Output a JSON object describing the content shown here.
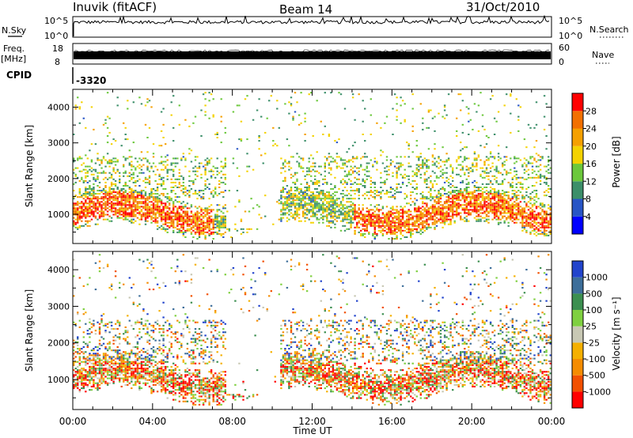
{
  "header": {
    "station": "Inuvik (fitACF)",
    "beam": "Beam 14",
    "date": "31/Oct/2010"
  },
  "panels": {
    "nsky": {
      "label": "N.Sky",
      "left_ticks": [
        "10^5",
        "10^0"
      ],
      "right_ticks": [
        "10^5",
        "10^0"
      ],
      "right_label": "N.Search"
    },
    "freq": {
      "label_line1": "Freq.",
      "label_line2": "[MHz]",
      "left_ticks": [
        "18",
        "8"
      ],
      "right_ticks": [
        "60",
        "0"
      ],
      "right_label": "Nave"
    },
    "cpid": {
      "label": "CPID",
      "value": "-3320"
    }
  },
  "chart_data": [
    {
      "type": "heatmap",
      "name": "power",
      "ylabel": "Slant Range [km]",
      "xlabel": "Time UT",
      "x_ticks": [
        "00:00",
        "04:00",
        "08:00",
        "12:00",
        "16:00",
        "20:00",
        "00:00"
      ],
      "xlim_hours": [
        0,
        24
      ],
      "y_ticks": [
        1000,
        2000,
        3000,
        4000
      ],
      "ylim": [
        180,
        4500
      ],
      "colorbar": {
        "label": "Power [dB]",
        "ticks": [
          "4",
          "8",
          "12",
          "16",
          "20",
          "24",
          "28"
        ],
        "colors": [
          "#0000ff",
          "#2855c6",
          "#3c8f6a",
          "#6cc83c",
          "#f4d200",
          "#f5a000",
          "#f27000",
          "#ff0000"
        ]
      }
    },
    {
      "type": "heatmap",
      "name": "velocity",
      "ylabel": "Slant Range [km]",
      "xlabel": "Time UT",
      "x_ticks": [
        "00:00",
        "04:00",
        "08:00",
        "12:00",
        "16:00",
        "20:00",
        "00:00"
      ],
      "xlim_hours": [
        0,
        24
      ],
      "y_ticks": [
        1000,
        2000,
        3000,
        4000
      ],
      "ylim": [
        180,
        4500
      ],
      "colorbar": {
        "label": "Velocity [m s⁻¹]",
        "ticks": [
          "1000",
          "500",
          "100",
          "25",
          "-25",
          "-100",
          "-500",
          "-1000"
        ],
        "colors": [
          "#2244cc",
          "#3d6e9a",
          "#3c8f50",
          "#7fd040",
          "#c8c8b4",
          "#f5b000",
          "#f58c00",
          "#f25000",
          "#ff0000"
        ]
      }
    }
  ]
}
